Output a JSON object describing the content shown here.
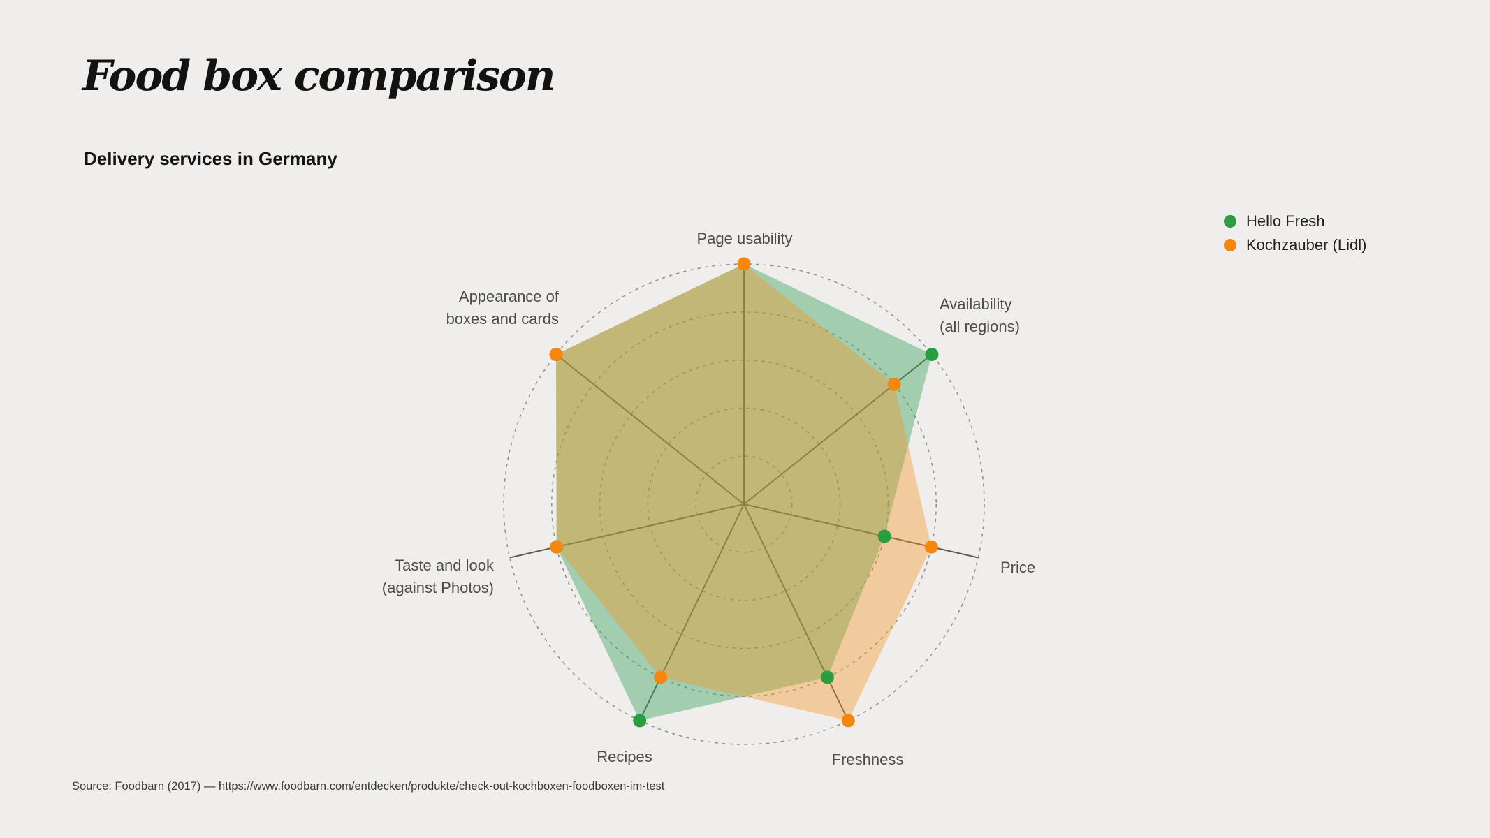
{
  "header": {
    "title": "Food box comparison",
    "subtitle": "Delivery services in Germany"
  },
  "legend": [
    {
      "label": "Hello Fresh",
      "color": "#2a9d3f"
    },
    {
      "label": "Kochzauber (Lidl)",
      "color": "#f5870f"
    }
  ],
  "axis_labels": {
    "page_usability": {
      "line1": "Page usability"
    },
    "availability": {
      "line1": "Availability",
      "line2": "(all regions)"
    },
    "price": {
      "line1": "Price"
    },
    "freshness": {
      "line1": "Freshness"
    },
    "recipes": {
      "line1": "Recipes"
    },
    "taste": {
      "line1": "Taste and look",
      "line2": "(against Photos)"
    },
    "appearance": {
      "line1": "Appearance of",
      "line2": "boxes and cards"
    }
  },
  "source": "Source: Foodbarn (2017) — https://www.foodbarn.com/entdecken/produkte/check-out-kochboxen-foodboxen-im-test",
  "chart_data": {
    "type": "radar",
    "title": "Food box comparison",
    "subtitle": "Delivery services in Germany",
    "categories": [
      "Page usability",
      "Availability (all regions)",
      "Price",
      "Freshness",
      "Recipes",
      "Taste and look (against Photos)",
      "Appearance of boxes and cards"
    ],
    "series": [
      {
        "name": "Hello Fresh",
        "color": "#2a9d3f",
        "fill": "rgba(58,160,90,0.42)",
        "values": [
          5,
          5,
          3,
          4,
          5,
          4,
          5
        ]
      },
      {
        "name": "Kochzauber (Lidl)",
        "color": "#f5870f",
        "fill": "rgba(244,146,30,0.38)",
        "values": [
          5,
          4,
          4,
          5,
          4,
          4,
          5
        ]
      }
    ],
    "scale": {
      "min": 0,
      "max": 5,
      "rings": [
        1,
        2,
        3,
        4,
        5
      ]
    },
    "grid": "dashed concentric circles with radial spokes",
    "grid_color": "#8f9089",
    "spoke_color": "#5b5c53",
    "legend_position": "top-right",
    "marker_radius": 9.5
  }
}
